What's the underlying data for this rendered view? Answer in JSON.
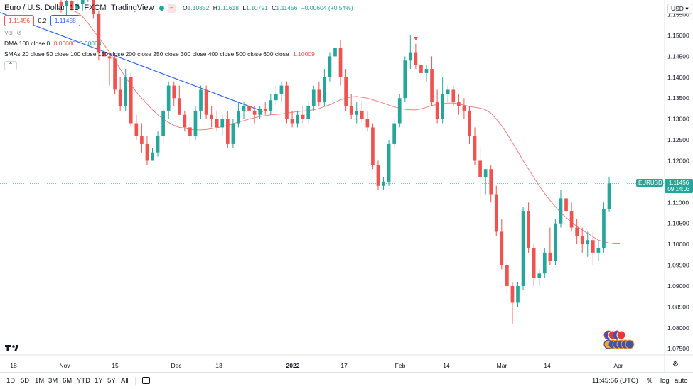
{
  "header": {
    "symbol": "Euro / U.S. Dollar",
    "interval": "1D",
    "exchange": "FXCM",
    "source": "TradingView",
    "o_label": "O",
    "o": "1.10852",
    "h_label": "H",
    "h": "1.11618",
    "l_label": "L",
    "l": "1.10791",
    "c_label": "C",
    "c": "1.11456",
    "change": "+0.00604 (+0.54%)",
    "sell": "1.11456",
    "spread": "0.2",
    "buy": "1.11458"
  },
  "indicators": {
    "vol_label": "Vol",
    "dma_label": "DMA 100 close 0",
    "dma_val1": "0.00000",
    "dma_val2": "0.00000",
    "smas_label": "SMAs 20 close 50 close 100 close 150 close 200 close 250 close 300 close 400 close 500 close 600 close",
    "smas_val": "1.10009"
  },
  "price_scale": {
    "currency": "USD",
    "ticks": [
      "1.15500",
      "1.15000",
      "1.14500",
      "1.14000",
      "1.13500",
      "1.13000",
      "1.12500",
      "1.12000",
      "1.11500",
      "1.11000",
      "1.10500",
      "1.10000",
      "1.09500",
      "1.09000",
      "1.08500",
      "1.08000",
      "1.07500"
    ],
    "last_symbol": "EURUSD",
    "last_price": "1.11456",
    "countdown": "09:14:03"
  },
  "time_scale": {
    "labels": [
      "18",
      "Nov",
      "15",
      "Dec",
      "13",
      "2022",
      "17",
      "Feb",
      "14",
      "Mar",
      "14",
      "Apr"
    ]
  },
  "bottom": {
    "timeframes": [
      "1D",
      "5D",
      "1M",
      "3M",
      "6M",
      "YTD",
      "1Y",
      "5Y",
      "All"
    ],
    "time": "11:45:56 (UTC)",
    "percent": "%",
    "log": "log",
    "auto": "auto"
  },
  "colors": {
    "up": "#26a69a",
    "down": "#ef5350",
    "sma": "#f08080",
    "trendline": "#2962ff"
  },
  "chart_data": {
    "type": "candlestick",
    "y_range": [
      1.0735,
      1.1585
    ],
    "ohlc": [
      [
        1.158,
        1.1595,
        1.1555,
        1.157
      ],
      [
        1.157,
        1.159,
        1.154,
        1.1582
      ],
      [
        1.1582,
        1.16,
        1.156,
        1.1565
      ],
      [
        1.1565,
        1.158,
        1.153,
        1.1575
      ],
      [
        1.1575,
        1.16,
        1.156,
        1.159
      ],
      [
        1.159,
        1.161,
        1.158,
        1.1596
      ],
      [
        1.1596,
        1.16,
        1.154,
        1.1551
      ],
      [
        1.1551,
        1.156,
        1.144,
        1.146
      ],
      [
        1.146,
        1.147,
        1.143,
        1.145
      ],
      [
        1.145,
        1.146,
        1.138,
        1.1445
      ],
      [
        1.1445,
        1.1455,
        1.136,
        1.137
      ],
      [
        1.137,
        1.14,
        1.132,
        1.133
      ],
      [
        1.133,
        1.142,
        1.132,
        1.14
      ],
      [
        1.14,
        1.141,
        1.128,
        1.129
      ],
      [
        1.129,
        1.131,
        1.125,
        1.126
      ],
      [
        1.126,
        1.129,
        1.122,
        1.124
      ],
      [
        1.124,
        1.126,
        1.119,
        1.12
      ],
      [
        1.12,
        1.123,
        1.12,
        1.122
      ],
      [
        1.122,
        1.127,
        1.121,
        1.126
      ],
      [
        1.126,
        1.133,
        1.124,
        1.132
      ],
      [
        1.132,
        1.139,
        1.13,
        1.138
      ],
      [
        1.138,
        1.139,
        1.133,
        1.135
      ],
      [
        1.135,
        1.138,
        1.131,
        1.131
      ],
      [
        1.131,
        1.132,
        1.127,
        1.128
      ],
      [
        1.128,
        1.13,
        1.124,
        1.126
      ],
      [
        1.126,
        1.133,
        1.125,
        1.132
      ],
      [
        1.132,
        1.138,
        1.13,
        1.137
      ],
      [
        1.137,
        1.138,
        1.13,
        1.131
      ],
      [
        1.131,
        1.133,
        1.128,
        1.13
      ],
      [
        1.13,
        1.132,
        1.127,
        1.128
      ],
      [
        1.128,
        1.131,
        1.126,
        1.13
      ],
      [
        1.13,
        1.132,
        1.123,
        1.124
      ],
      [
        1.124,
        1.13,
        1.123,
        1.129
      ],
      [
        1.129,
        1.134,
        1.128,
        1.132
      ],
      [
        1.132,
        1.134,
        1.13,
        1.133
      ],
      [
        1.133,
        1.135,
        1.131,
        1.132
      ],
      [
        1.132,
        1.133,
        1.129,
        1.131
      ],
      [
        1.131,
        1.133,
        1.13,
        1.1325
      ],
      [
        1.1325,
        1.134,
        1.131,
        1.132
      ],
      [
        1.132,
        1.136,
        1.131,
        1.1345
      ],
      [
        1.1345,
        1.138,
        1.133,
        1.136
      ],
      [
        1.136,
        1.139,
        1.134,
        1.138
      ],
      [
        1.138,
        1.139,
        1.129,
        1.13
      ],
      [
        1.13,
        1.132,
        1.128,
        1.129
      ],
      [
        1.129,
        1.132,
        1.128,
        1.131
      ],
      [
        1.131,
        1.133,
        1.129,
        1.13
      ],
      [
        1.13,
        1.134,
        1.129,
        1.133
      ],
      [
        1.133,
        1.138,
        1.132,
        1.137
      ],
      [
        1.137,
        1.139,
        1.133,
        1.134
      ],
      [
        1.134,
        1.142,
        1.133,
        1.14
      ],
      [
        1.14,
        1.146,
        1.139,
        1.145
      ],
      [
        1.145,
        1.148,
        1.143,
        1.147
      ],
      [
        1.147,
        1.149,
        1.138,
        1.14
      ],
      [
        1.14,
        1.142,
        1.132,
        1.133
      ],
      [
        1.133,
        1.136,
        1.13,
        1.131
      ],
      [
        1.131,
        1.134,
        1.129,
        1.132
      ],
      [
        1.132,
        1.134,
        1.129,
        1.13
      ],
      [
        1.13,
        1.132,
        1.127,
        1.128
      ],
      [
        1.128,
        1.129,
        1.118,
        1.119
      ],
      [
        1.119,
        1.12,
        1.113,
        1.114
      ],
      [
        1.114,
        1.116,
        1.113,
        1.115
      ],
      [
        1.115,
        1.125,
        1.114,
        1.124
      ],
      [
        1.124,
        1.13,
        1.123,
        1.129
      ],
      [
        1.129,
        1.136,
        1.128,
        1.135
      ],
      [
        1.135,
        1.145,
        1.134,
        1.144
      ],
      [
        1.144,
        1.15,
        1.142,
        1.146
      ],
      [
        1.146,
        1.148,
        1.142,
        1.143
      ],
      [
        1.143,
        1.145,
        1.139,
        1.141
      ],
      [
        1.141,
        1.143,
        1.139,
        1.142
      ],
      [
        1.142,
        1.145,
        1.133,
        1.134
      ],
      [
        1.134,
        1.137,
        1.129,
        1.13
      ],
      [
        1.13,
        1.14,
        1.129,
        1.136
      ],
      [
        1.136,
        1.138,
        1.134,
        1.137
      ],
      [
        1.137,
        1.138,
        1.133,
        1.134
      ],
      [
        1.134,
        1.136,
        1.131,
        1.133
      ],
      [
        1.133,
        1.135,
        1.13,
        1.132
      ],
      [
        1.132,
        1.133,
        1.124,
        1.126
      ],
      [
        1.126,
        1.128,
        1.119,
        1.12
      ],
      [
        1.12,
        1.123,
        1.111,
        1.116
      ],
      [
        1.116,
        1.118,
        1.112,
        1.118
      ],
      [
        1.118,
        1.119,
        1.11,
        1.112
      ],
      [
        1.112,
        1.114,
        1.102,
        1.103
      ],
      [
        1.103,
        1.106,
        1.094,
        1.095
      ],
      [
        1.095,
        1.096,
        1.088,
        1.09
      ],
      [
        1.09,
        1.091,
        1.081,
        1.086
      ],
      [
        1.086,
        1.091,
        1.085,
        1.09
      ],
      [
        1.09,
        1.109,
        1.089,
        1.108
      ],
      [
        1.108,
        1.11,
        1.098,
        1.099
      ],
      [
        1.099,
        1.1,
        1.09,
        1.092
      ],
      [
        1.092,
        1.094,
        1.09,
        1.093
      ],
      [
        1.093,
        1.099,
        1.092,
        1.098
      ],
      [
        1.098,
        1.104,
        1.095,
        1.096
      ],
      [
        1.096,
        1.106,
        1.095,
        1.105
      ],
      [
        1.105,
        1.113,
        1.104,
        1.111
      ],
      [
        1.111,
        1.113,
        1.106,
        1.108
      ],
      [
        1.108,
        1.11,
        1.103,
        1.104
      ],
      [
        1.104,
        1.106,
        1.1,
        1.102
      ],
      [
        1.102,
        1.104,
        1.098,
        1.1
      ],
      [
        1.1,
        1.103,
        1.097,
        1.101
      ],
      [
        1.101,
        1.103,
        1.095,
        1.098
      ],
      [
        1.098,
        1.101,
        1.096,
        1.099
      ],
      [
        1.099,
        1.11,
        1.098,
        1.1085
      ],
      [
        1.1085,
        1.1162,
        1.1079,
        1.1146
      ]
    ],
    "sma": [
      1.156,
      1.1555,
      1.1545,
      1.153,
      1.1512,
      1.1495,
      1.1478,
      1.146,
      1.144,
      1.142,
      1.14,
      1.1382,
      1.1365,
      1.135,
      1.1336,
      1.1322,
      1.131,
      1.13,
      1.1292,
      1.1285,
      1.128,
      1.1278,
      1.1275,
      1.1274,
      1.1274,
      1.1275,
      1.1277,
      1.1279,
      1.1282,
      1.1285,
      1.1289,
      1.1293,
      1.1296,
      1.13,
      1.1303,
      1.1306,
      1.1308,
      1.131,
      1.1311,
      1.1312,
      1.1314,
      1.1316,
      1.1318,
      1.1319,
      1.132,
      1.1322,
      1.1325,
      1.133,
      1.1334,
      1.134,
      1.1346,
      1.135,
      1.1353,
      1.1354,
      1.1352,
      1.135,
      1.1346,
      1.1342,
      1.1338,
      1.1333,
      1.1329,
      1.1326,
      1.1323,
      1.1322,
      1.1322,
      1.1324,
      1.1328,
      1.1332,
      1.1335,
      1.1337,
      1.1338,
      1.1338,
      1.1336,
      1.1333,
      1.133,
      1.1328,
      1.1326,
      1.1322,
      1.1314,
      1.13,
      1.1284,
      1.1265,
      1.1244,
      1.1222,
      1.12,
      1.118,
      1.116,
      1.114,
      1.1122,
      1.1105,
      1.109,
      1.1076,
      1.1064,
      1.1053,
      1.1043,
      1.1034,
      1.1026,
      1.1018,
      1.101,
      1.1006,
      1.1003,
      1.1001,
      1.1001
    ]
  }
}
